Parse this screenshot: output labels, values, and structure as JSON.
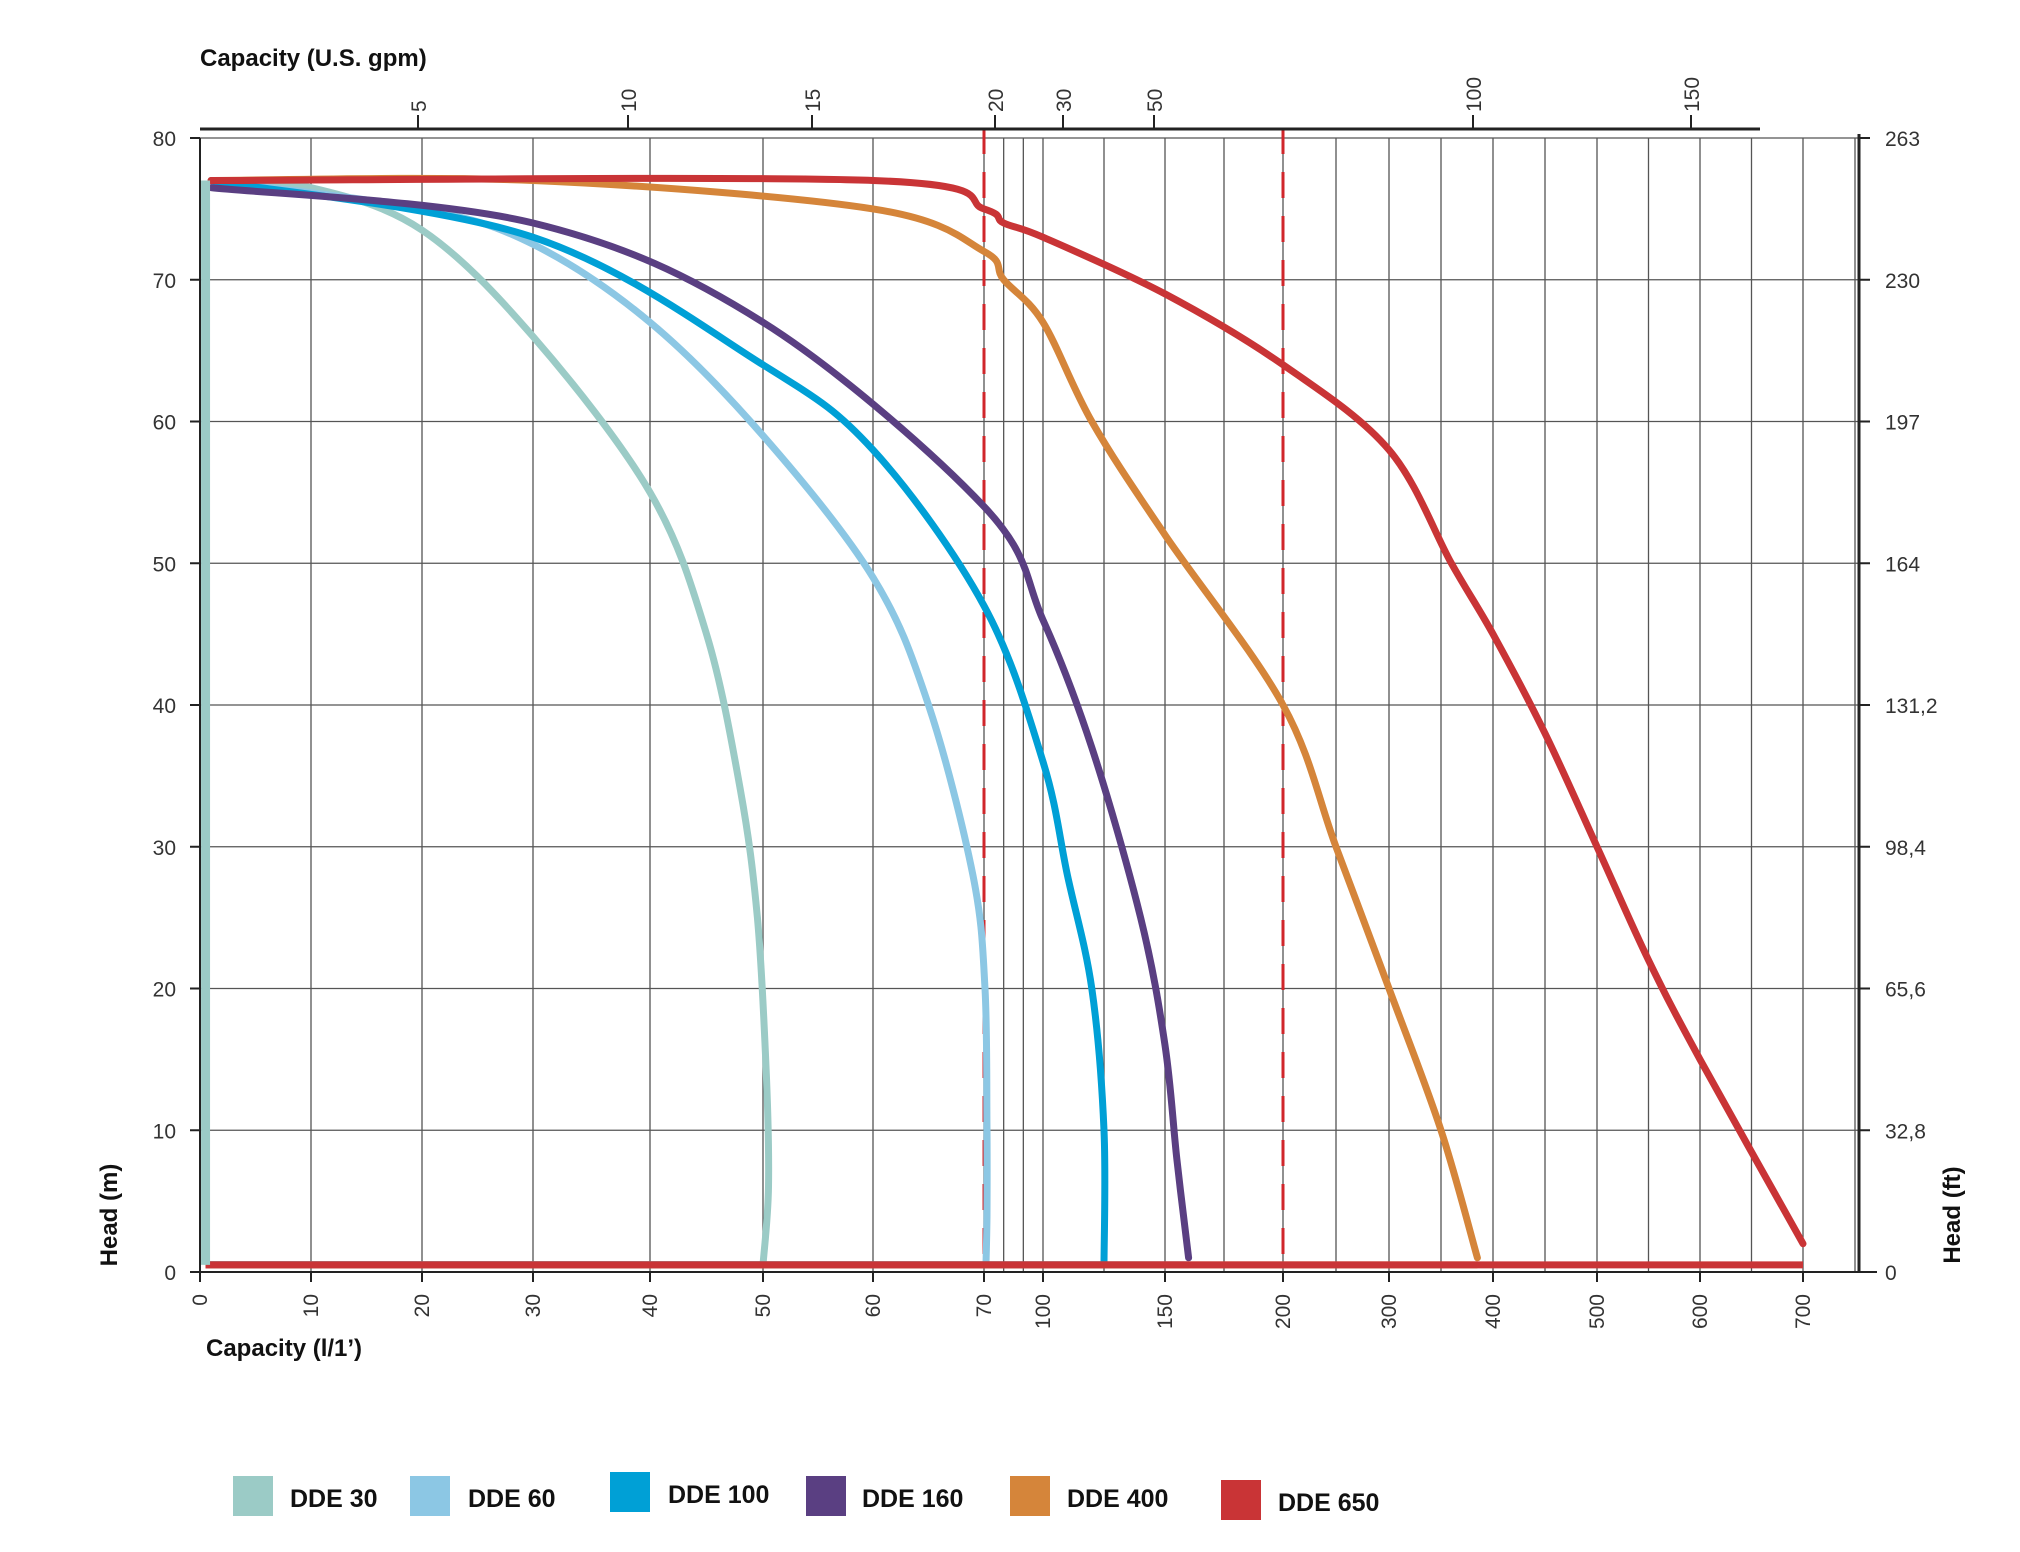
{
  "chart_data": {
    "type": "line",
    "x_axis_bottom": {
      "label": "Capacity (l/1’)",
      "ticks": [
        0,
        10,
        20,
        30,
        40,
        50,
        60,
        70,
        100,
        150,
        200,
        300,
        400,
        500,
        600,
        700
      ],
      "tick_labels": [
        "0",
        "10",
        "20",
        "30",
        "40",
        "50",
        "60",
        "70",
        "100",
        "150",
        "200",
        "300",
        "400",
        "500",
        "600",
        "700"
      ]
    },
    "x_axis_top": {
      "label": "Capacity (U.S. gpm)",
      "ticks": [
        5,
        10,
        15,
        20,
        30,
        50,
        100,
        150
      ],
      "tick_labels": [
        "5",
        "10",
        "15",
        "20",
        "30",
        "50",
        "100",
        "150"
      ]
    },
    "y_axis_left": {
      "label": "Head (m)",
      "ticks": [
        0,
        10,
        20,
        30,
        40,
        50,
        60,
        70,
        80
      ],
      "tick_labels": [
        "0",
        "10",
        "20",
        "30",
        "40",
        "50",
        "60",
        "70",
        "80"
      ],
      "range": [
        0,
        80
      ]
    },
    "y_axis_right": {
      "label": "Head (ft)",
      "tick_labels": [
        "0",
        "32,8",
        "65,6",
        "98,4",
        "131,2",
        "164",
        "197",
        "230",
        "263"
      ]
    },
    "grid": true,
    "reference_lines_x": [
      70,
      200
    ],
    "legend_position": "bottom",
    "series": [
      {
        "name": "DDE 30",
        "color": "#9bcbc6",
        "points": [
          [
            1,
            77
          ],
          [
            10,
            76.5
          ],
          [
            20,
            73.5
          ],
          [
            30,
            66
          ],
          [
            40,
            55
          ],
          [
            45,
            45
          ],
          [
            48,
            34
          ],
          [
            49.5,
            25
          ],
          [
            50.3,
            14
          ],
          [
            50.5,
            6
          ],
          [
            50,
            0.5
          ]
        ]
      },
      {
        "name": "DDE 60",
        "color": "#8cc7e4",
        "points": [
          [
            1,
            77
          ],
          [
            20,
            75
          ],
          [
            30,
            72.5
          ],
          [
            40,
            67
          ],
          [
            50,
            59
          ],
          [
            60,
            49
          ],
          [
            65,
            40
          ],
          [
            69,
            28
          ],
          [
            70.5,
            20
          ],
          [
            71.5,
            10
          ],
          [
            71.5,
            4
          ],
          [
            71,
            0.5
          ]
        ]
      },
      {
        "name": "DDE 100",
        "color": "#00a0d6",
        "points": [
          [
            1,
            77
          ],
          [
            30,
            73
          ],
          [
            50,
            64
          ],
          [
            60,
            58
          ],
          [
            70,
            47
          ],
          [
            100,
            36
          ],
          [
            110,
            28
          ],
          [
            120,
            20
          ],
          [
            125,
            10
          ],
          [
            125,
            0.5
          ]
        ]
      },
      {
        "name": "DDE 160",
        "color": "#5a3f82",
        "points": [
          [
            1,
            76.5
          ],
          [
            30,
            74
          ],
          [
            50,
            67
          ],
          [
            70,
            54
          ],
          [
            100,
            46
          ],
          [
            120,
            37
          ],
          [
            140,
            25
          ],
          [
            150,
            16
          ],
          [
            155,
            8
          ],
          [
            160,
            1
          ]
        ]
      },
      {
        "name": "DDE 400",
        "color": "#d5853a",
        "points": [
          [
            1,
            77
          ],
          [
            30,
            77
          ],
          [
            60,
            75
          ],
          [
            70,
            72
          ],
          [
            80,
            70
          ],
          [
            100,
            67
          ],
          [
            120,
            60
          ],
          [
            150,
            52
          ],
          [
            200,
            40
          ],
          [
            250,
            30
          ],
          [
            300,
            20
          ],
          [
            350,
            10
          ],
          [
            385,
            1
          ]
        ]
      },
      {
        "name": "DDE 650",
        "color": "#c93436",
        "points": [
          [
            1,
            77
          ],
          [
            60,
            77
          ],
          [
            70,
            75
          ],
          [
            80,
            74
          ],
          [
            100,
            73
          ],
          [
            150,
            69
          ],
          [
            200,
            64
          ],
          [
            300,
            58
          ],
          [
            360,
            50
          ],
          [
            400,
            45
          ],
          [
            450,
            38
          ],
          [
            500,
            30
          ],
          [
            550,
            22
          ],
          [
            600,
            15
          ],
          [
            700,
            2
          ]
        ]
      }
    ]
  }
}
